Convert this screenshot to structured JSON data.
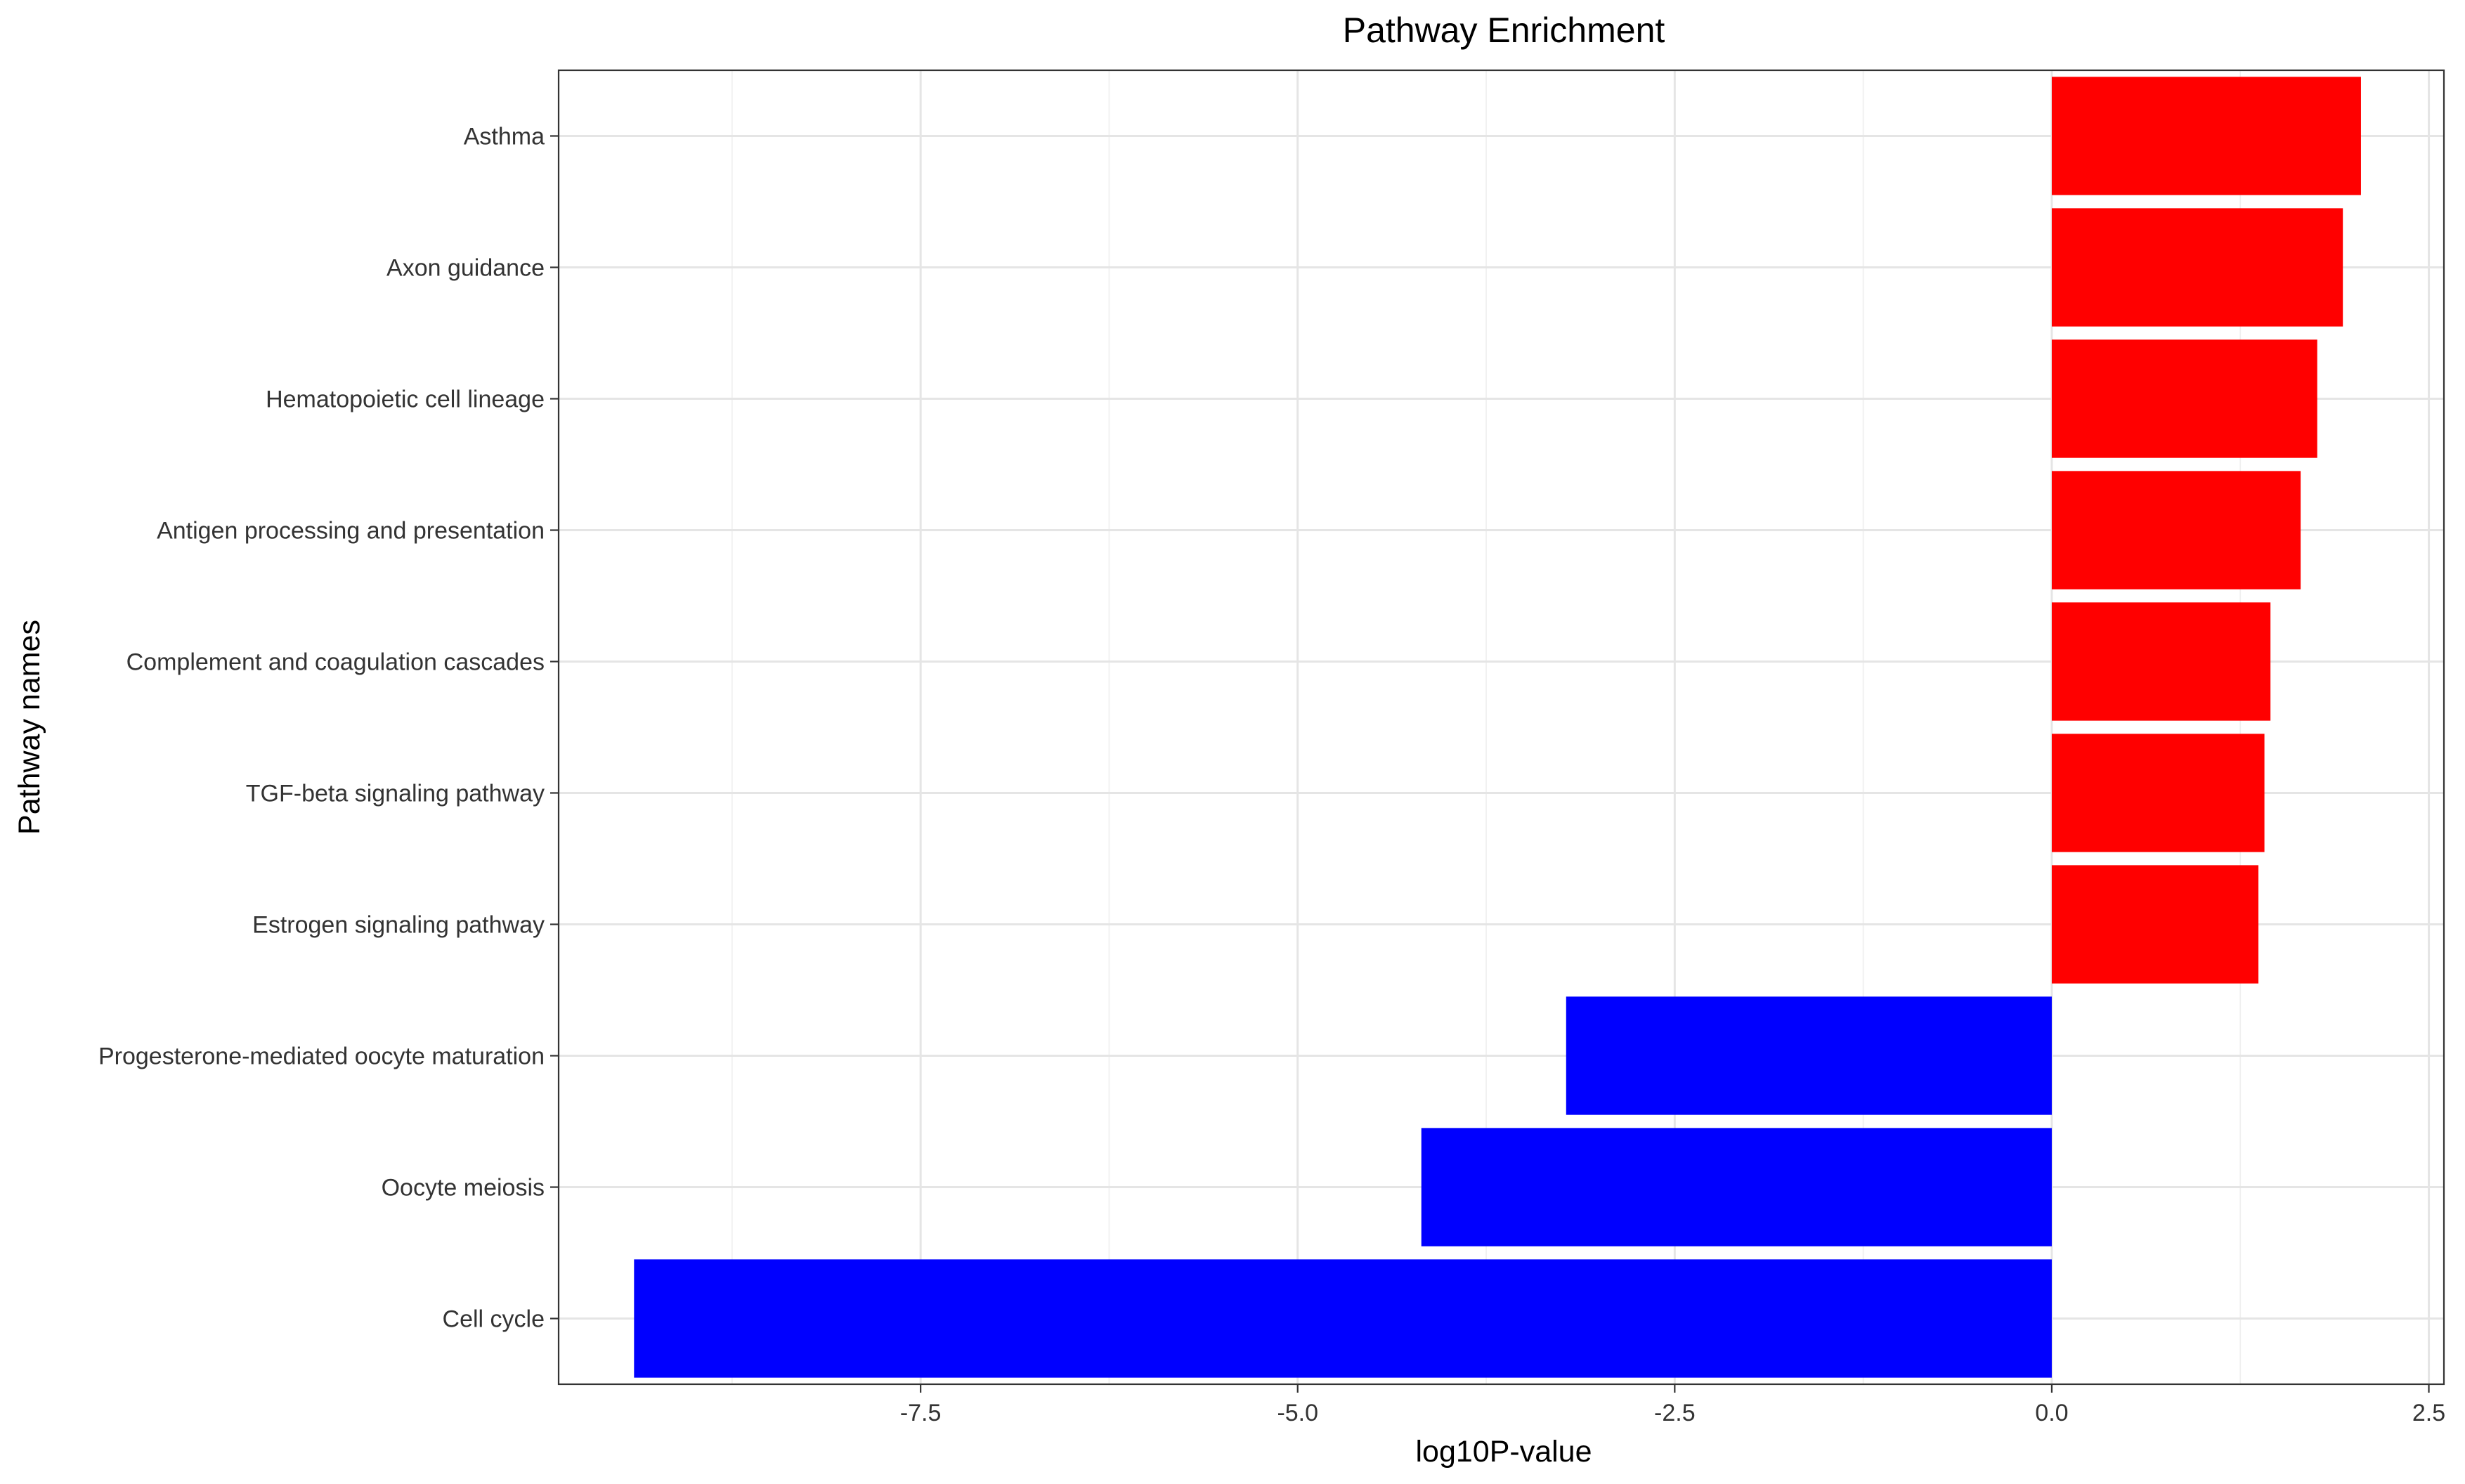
{
  "chart_data": {
    "type": "bar",
    "orientation": "horizontal",
    "title": "Pathway Enrichment",
    "xlabel": "log10P-value",
    "ylabel": "Pathway names",
    "xlim": [
      -9.9,
      2.6
    ],
    "x_ticks": [
      -7.5,
      -5.0,
      -2.5,
      0.0,
      2.5
    ],
    "x_tick_labels": [
      "-7.5",
      "-5.0",
      "-2.5",
      "0.0",
      "2.5"
    ],
    "grid": true,
    "legend": "none",
    "categories": [
      "Asthma",
      "Axon guidance",
      "Hematopoietic cell lineage",
      "Antigen processing and presentation",
      "Complement and coagulation cascades",
      "TGF-beta signaling pathway",
      "Estrogen signaling pathway",
      "Progesterone-mediated oocyte maturation",
      "Oocyte meiosis",
      "Cell cycle"
    ],
    "values": [
      2.05,
      1.93,
      1.76,
      1.65,
      1.45,
      1.41,
      1.37,
      -3.22,
      -4.18,
      -9.4
    ],
    "colors": {
      "positive": "#ff0000",
      "negative": "#0000ff"
    }
  }
}
